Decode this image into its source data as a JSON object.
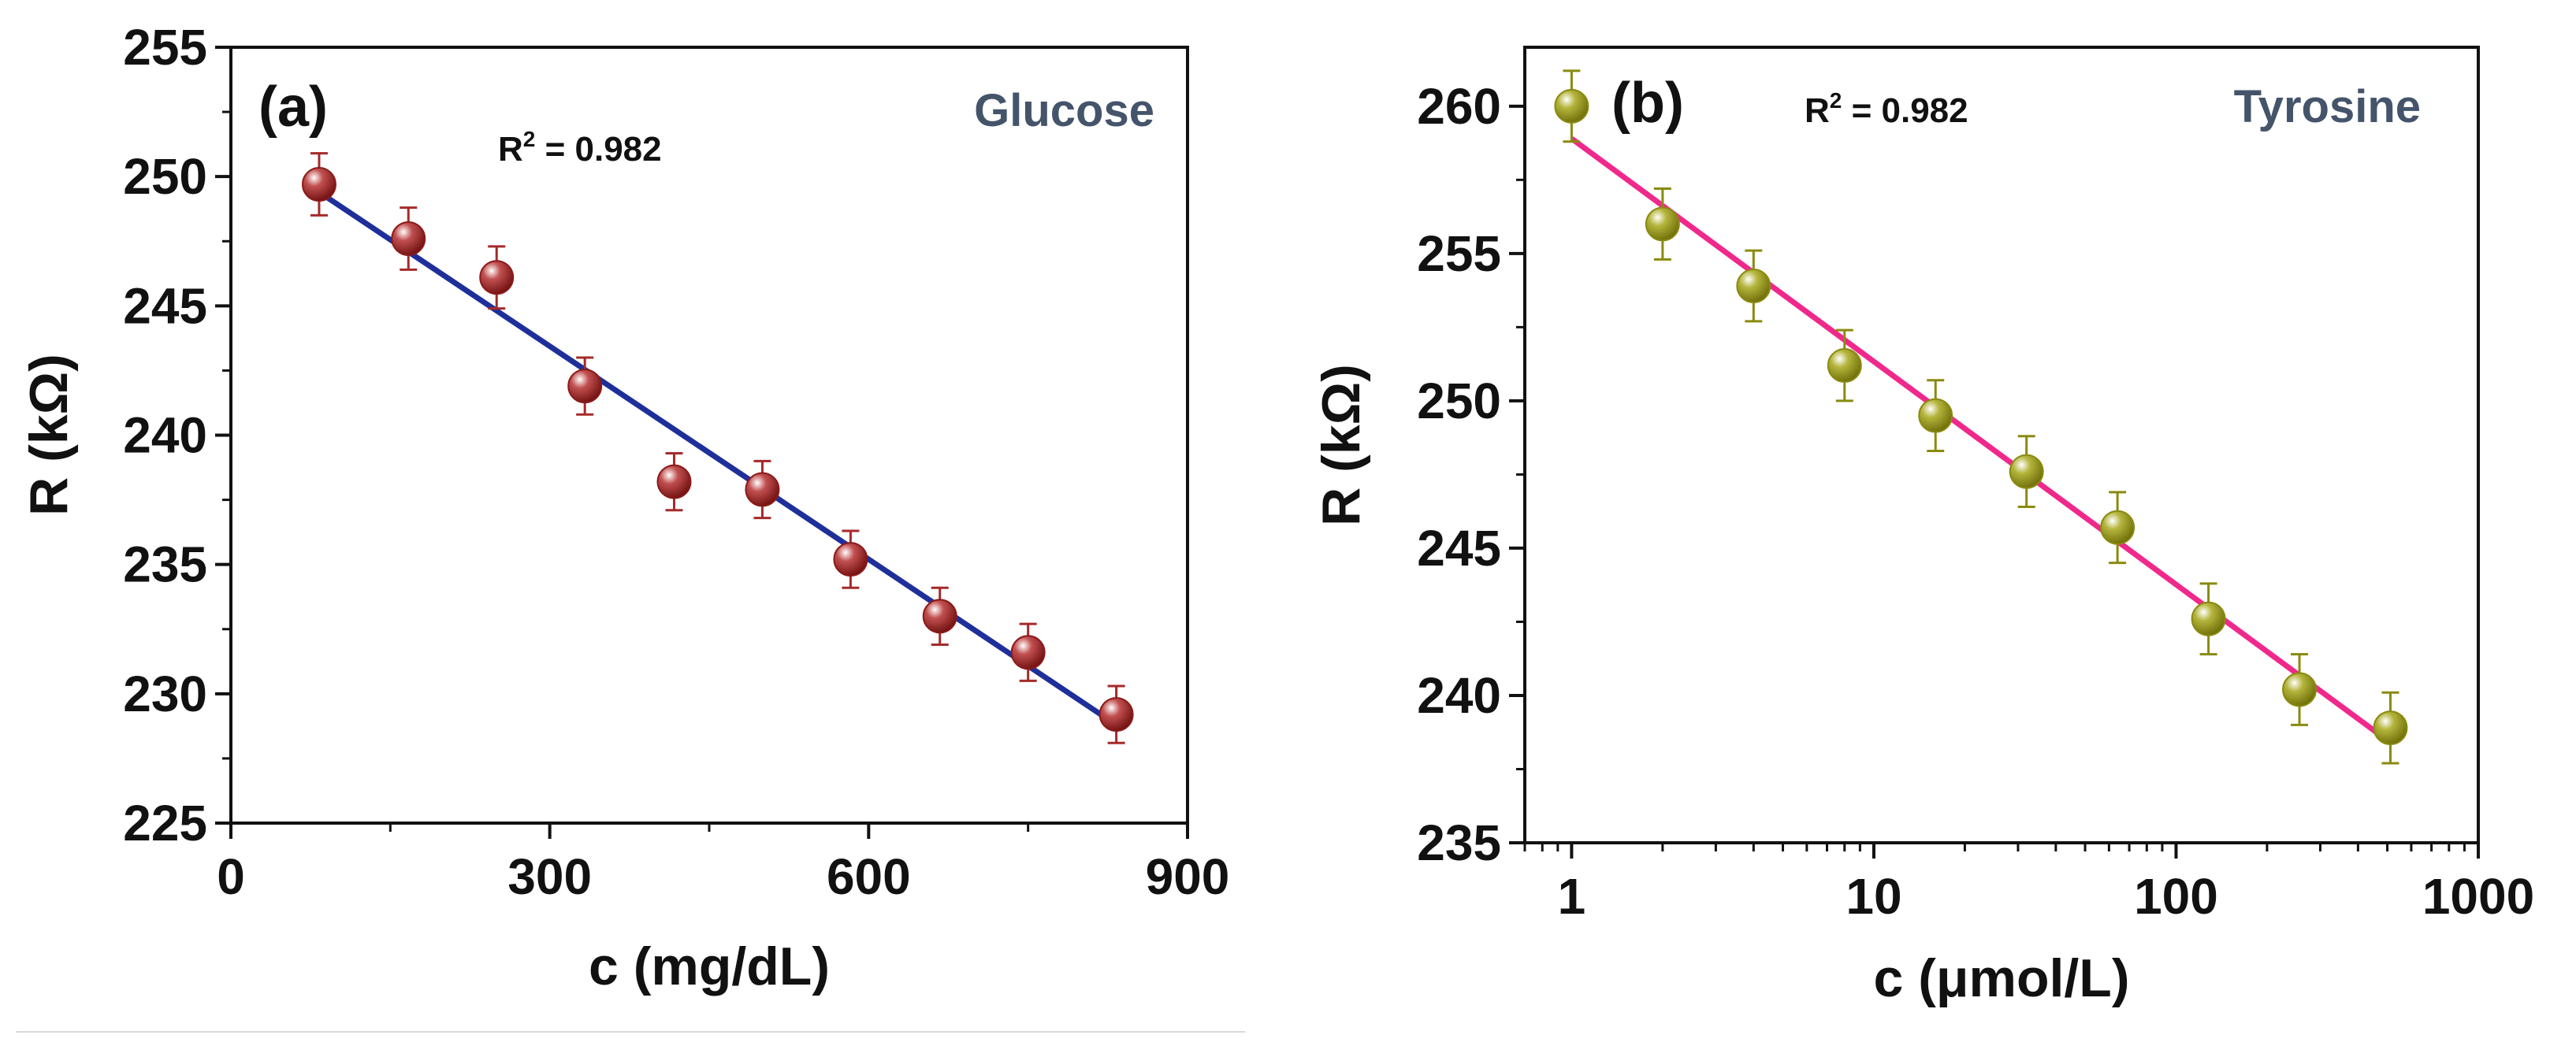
{
  "chart_data": [
    {
      "type": "scatter",
      "panel_label": "(a)",
      "name": "Glucose",
      "name_color": "#44546A",
      "r2_label": "R",
      "r2_exponent": "2",
      "r2_value": " = 0.982",
      "xlabel": "c (mg/dL)",
      "ylabel": "R (kΩ)",
      "xscale": "linear",
      "xlim": [
        0,
        900
      ],
      "ylim": [
        225,
        255
      ],
      "xticks": [
        0,
        300,
        600,
        900
      ],
      "xtick_labels": [
        "0",
        "300",
        "600",
        "900"
      ],
      "yticks": [
        225,
        230,
        235,
        240,
        245,
        250,
        255
      ],
      "ytick_labels": [
        "225",
        "230",
        "235",
        "240",
        "245",
        "250",
        "255"
      ],
      "x": [
        83,
        167,
        250,
        333,
        417,
        500,
        583,
        667,
        750,
        833
      ],
      "y": [
        249.7,
        247.6,
        246.1,
        241.9,
        238.2,
        237.9,
        235.2,
        233.0,
        231.6,
        229.2
      ],
      "error": [
        1.2,
        1.2,
        1.2,
        1.1,
        1.1,
        1.1,
        1.1,
        1.1,
        1.1,
        1.1
      ],
      "fit": {
        "x": [
          83,
          833
        ],
        "y": [
          249.4,
          228.8
        ]
      },
      "marker_color": "#8B1A1A",
      "errorbar_color": "#A52A2A",
      "fit_color": "#1F2F9A"
    },
    {
      "type": "scatter",
      "panel_label": "(b)",
      "name": "Tyrosine",
      "name_color": "#44546A",
      "r2_label": "R",
      "r2_exponent": "2",
      "r2_value": " = 0.982",
      "xlabel": "c (μmol/L)",
      "ylabel": "R (kΩ)",
      "xscale": "log",
      "xlim": [
        0.7,
        1000
      ],
      "ylim": [
        235,
        262
      ],
      "xticks": [
        1,
        10,
        100,
        1000
      ],
      "xtick_labels": [
        "1",
        "10",
        "100",
        "1000"
      ],
      "yticks": [
        235,
        240,
        245,
        250,
        255,
        260
      ],
      "ytick_labels": [
        "235",
        "240",
        "245",
        "250",
        "255",
        "260"
      ],
      "x": [
        1,
        2,
        4,
        8,
        16,
        32,
        64,
        128,
        256,
        512
      ],
      "y": [
        260.0,
        256.0,
        253.9,
        251.2,
        249.5,
        247.6,
        245.7,
        242.6,
        240.2,
        238.9
      ],
      "error": [
        1.2,
        1.2,
        1.2,
        1.2,
        1.2,
        1.2,
        1.2,
        1.2,
        1.2,
        1.2
      ],
      "fit": {
        "x": [
          1,
          512
        ],
        "y": [
          258.9,
          238.4
        ]
      },
      "marker_color": "#8A8A10",
      "errorbar_color": "#8A8A10",
      "fit_color": "#F0288C"
    }
  ]
}
